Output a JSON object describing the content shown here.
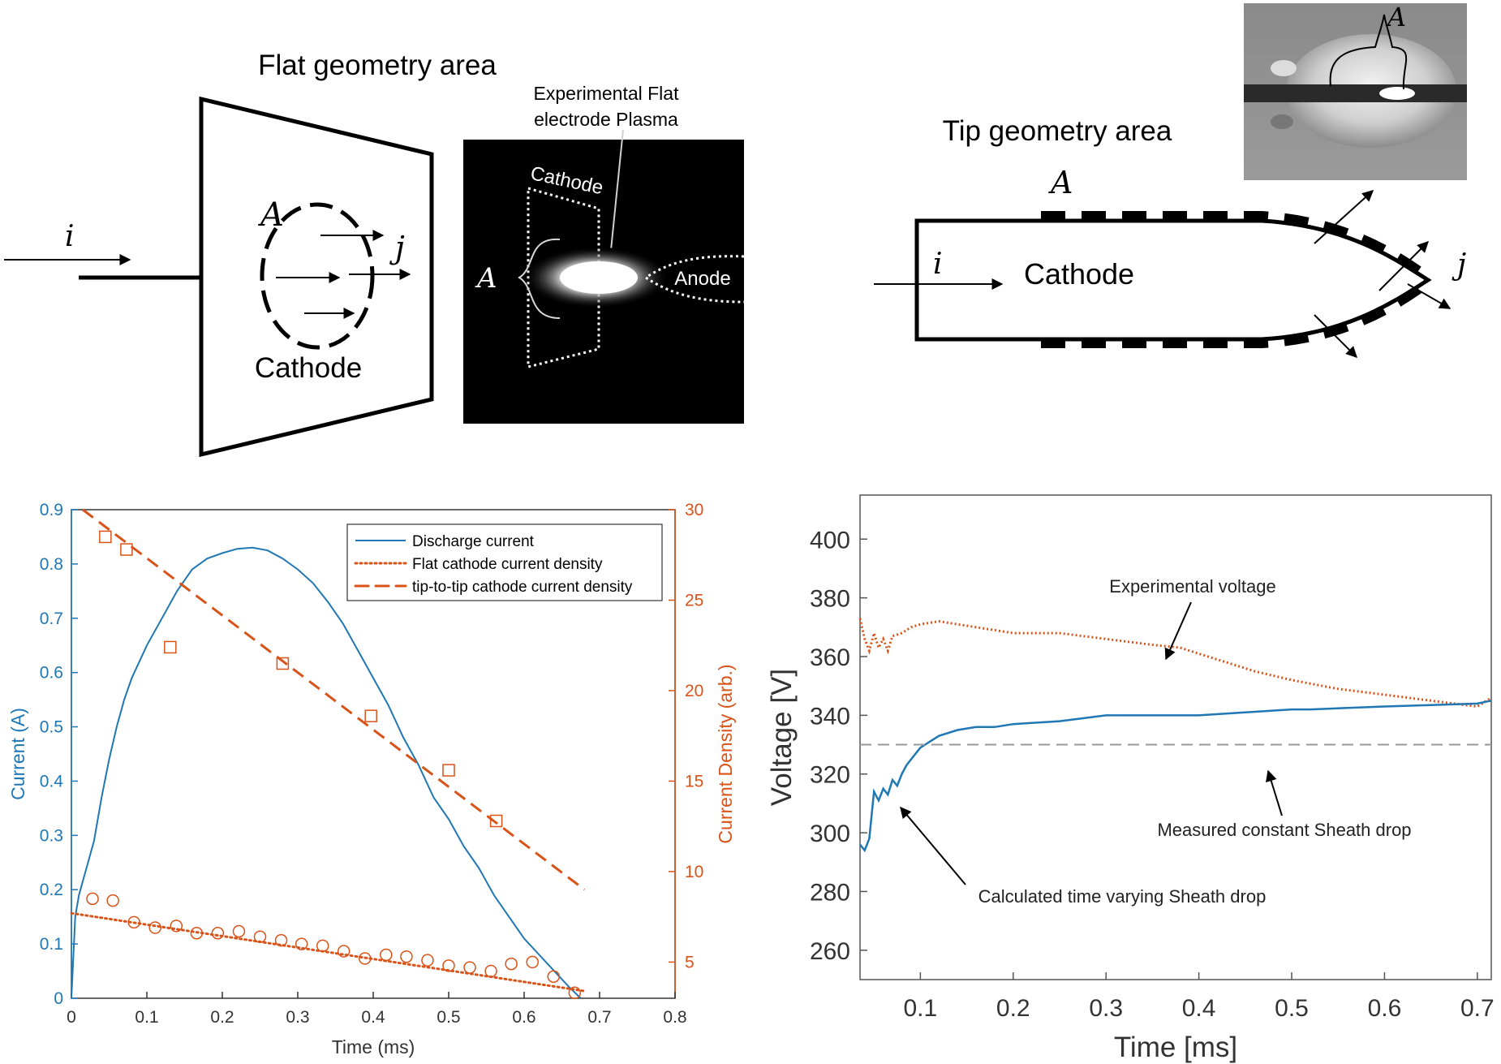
{
  "flat_panel": {
    "title": "Flat geometry area",
    "area_label": "A",
    "current_label": "i",
    "density_label": "j",
    "cathode_label": "Cathode"
  },
  "photo_panel": {
    "caption_line1": "Experimental Flat",
    "caption_line2": "electrode Plasma",
    "cathode_label": "Cathode",
    "anode_label": "Anode",
    "area_label": "A"
  },
  "tip_panel": {
    "title": "Tip geometry area",
    "area_label": "A",
    "current_label": "i",
    "density_label": "j",
    "cathode_label": "Cathode",
    "photo_area_label": "A"
  },
  "colors": {
    "blue": "#1f77b4",
    "orange": "#d95319",
    "axis": "#333333",
    "dashed_gray": "#999999"
  },
  "chart_data": [
    {
      "type": "line",
      "xlabel": "Time (ms)",
      "ylabel_left": "Current (A)",
      "ylabel_right": "Current Density (arb.)",
      "xlim": [
        0,
        0.8
      ],
      "ylim_left": [
        0,
        0.9
      ],
      "ylim_right": [
        3,
        30
      ],
      "xticks": [
        "0",
        "0.1",
        "0.2",
        "0.3",
        "0.4",
        "0.5",
        "0.6",
        "0.7",
        "0.8"
      ],
      "yticks_left": [
        "0",
        "0.1",
        "0.2",
        "0.3",
        "0.4",
        "0.5",
        "0.6",
        "0.7",
        "0.8",
        "0.9"
      ],
      "yticks_right": [
        "5",
        "10",
        "15",
        "20",
        "25",
        "30"
      ],
      "legend": {
        "position": "top-right",
        "entries": [
          "Discharge current",
          "Flat cathode current density",
          "tip-to-tip cathode current density"
        ]
      },
      "series": [
        {
          "name": "Discharge current",
          "axis": "left",
          "style": "solid",
          "color": "#1f77b4",
          "x": [
            0,
            0.005,
            0.01,
            0.02,
            0.03,
            0.04,
            0.05,
            0.06,
            0.07,
            0.08,
            0.09,
            0.1,
            0.12,
            0.14,
            0.16,
            0.18,
            0.2,
            0.22,
            0.24,
            0.26,
            0.28,
            0.3,
            0.32,
            0.34,
            0.36,
            0.38,
            0.4,
            0.42,
            0.44,
            0.46,
            0.48,
            0.5,
            0.52,
            0.54,
            0.56,
            0.58,
            0.6,
            0.62,
            0.64,
            0.66,
            0.675
          ],
          "y": [
            0,
            0.15,
            0.19,
            0.24,
            0.29,
            0.37,
            0.44,
            0.5,
            0.55,
            0.59,
            0.62,
            0.65,
            0.7,
            0.75,
            0.79,
            0.81,
            0.82,
            0.828,
            0.83,
            0.825,
            0.81,
            0.79,
            0.765,
            0.73,
            0.69,
            0.64,
            0.59,
            0.54,
            0.48,
            0.43,
            0.37,
            0.33,
            0.28,
            0.24,
            0.19,
            0.15,
            0.11,
            0.08,
            0.05,
            0.02,
            0.0
          ]
        },
        {
          "name": "Flat cathode current density",
          "axis": "right",
          "style": "dotted",
          "color": "#d95319",
          "x": [
            0,
            0.68
          ],
          "y": [
            7.7,
            3.4
          ]
        },
        {
          "name": "tip-to-tip cathode current density",
          "axis": "right",
          "style": "dashed",
          "color": "#d95319",
          "x": [
            0.015,
            0.68
          ],
          "y": [
            30,
            9
          ]
        },
        {
          "name": "",
          "marker": "circle",
          "axis": "right",
          "color": "#d95319",
          "x": [
            0.028,
            0.055,
            0.083,
            0.111,
            0.139,
            0.166,
            0.194,
            0.222,
            0.25,
            0.278,
            0.305,
            0.333,
            0.361,
            0.389,
            0.417,
            0.444,
            0.472,
            0.5,
            0.528,
            0.556,
            0.583,
            0.611,
            0.639,
            0.667
          ],
          "y": [
            8.5,
            8.4,
            7.2,
            6.9,
            7.0,
            6.6,
            6.6,
            6.7,
            6.4,
            6.2,
            6.0,
            5.9,
            5.6,
            5.2,
            5.4,
            5.3,
            5.1,
            4.8,
            4.7,
            4.5,
            4.9,
            5.0,
            4.2,
            3.3
          ]
        },
        {
          "name": "",
          "marker": "square",
          "axis": "right",
          "color": "#d95319",
          "x": [
            0.045,
            0.073,
            0.131,
            0.28,
            0.397,
            0.5,
            0.563
          ],
          "y": [
            28.5,
            27.8,
            22.4,
            21.5,
            18.6,
            15.6,
            12.8
          ]
        }
      ]
    },
    {
      "type": "line",
      "xlabel": "Time [ms]",
      "ylabel": "Voltage [V]",
      "xlim": [
        0.035,
        0.715
      ],
      "ylim": [
        250,
        415
      ],
      "xticks": [
        "0.1",
        "0.2",
        "0.3",
        "0.4",
        "0.5",
        "0.6",
        "0.7"
      ],
      "yticks": [
        "260",
        "280",
        "300",
        "320",
        "340",
        "360",
        "380",
        "400"
      ],
      "annotations": [
        "Experimental voltage",
        "Measured constant Sheath drop",
        "Calculated time varying Sheath drop"
      ],
      "series": [
        {
          "name": "Experimental voltage",
          "style": "dotted",
          "color": "#d95319",
          "x": [
            0.035,
            0.04,
            0.045,
            0.05,
            0.055,
            0.06,
            0.065,
            0.07,
            0.08,
            0.09,
            0.1,
            0.12,
            0.14,
            0.16,
            0.18,
            0.2,
            0.25,
            0.3,
            0.35,
            0.38,
            0.4,
            0.43,
            0.46,
            0.5,
            0.55,
            0.6,
            0.65,
            0.7,
            0.715
          ],
          "y": [
            373,
            366,
            362,
            368,
            363,
            366,
            362,
            367,
            368,
            370,
            371,
            372,
            371,
            370,
            369,
            368,
            368,
            366,
            364,
            363,
            361,
            358,
            355,
            352,
            349,
            347,
            345,
            343,
            346
          ]
        },
        {
          "name": "Calculated time varying Sheath drop",
          "style": "solid",
          "color": "#1f77b4",
          "x": [
            0.035,
            0.04,
            0.045,
            0.05,
            0.055,
            0.06,
            0.065,
            0.07,
            0.075,
            0.08,
            0.085,
            0.09,
            0.1,
            0.11,
            0.12,
            0.14,
            0.16,
            0.18,
            0.2,
            0.25,
            0.3,
            0.35,
            0.4,
            0.45,
            0.5,
            0.52,
            0.6,
            0.7,
            0.715
          ],
          "y": [
            296,
            294,
            298,
            314,
            311,
            315,
            313,
            318,
            316,
            320,
            323,
            325,
            329,
            331,
            333,
            335,
            336,
            336,
            337,
            338,
            340,
            340,
            340,
            341,
            342,
            342,
            343,
            344,
            345
          ]
        },
        {
          "name": "Measured constant Sheath drop",
          "style": "dashed",
          "color": "#999999",
          "x": [
            0.035,
            0.715
          ],
          "y": [
            330,
            330
          ]
        }
      ]
    }
  ]
}
